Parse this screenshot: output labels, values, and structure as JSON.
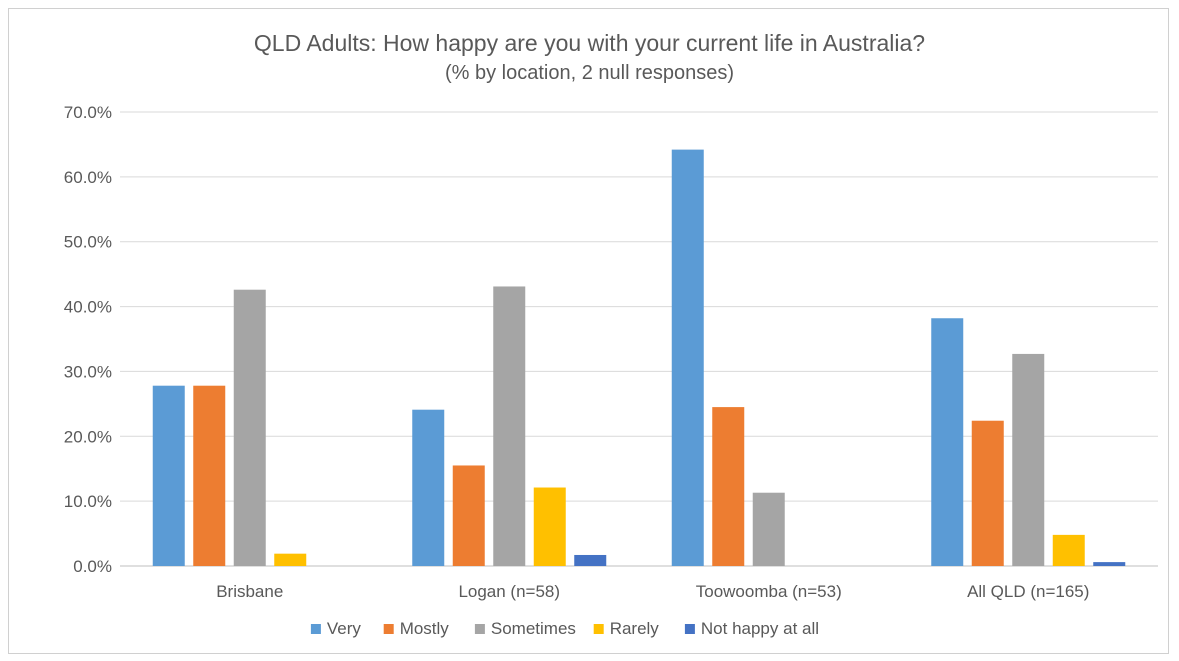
{
  "chart_data": {
    "type": "bar",
    "title": "QLD Adults: How happy are you with your current life in Australia?",
    "subtitle": "(% by location, 2 null responses)",
    "categories": [
      "Brisbane",
      "Logan (n=58)",
      "Toowoomba (n=53)",
      "All QLD (n=165)"
    ],
    "series": [
      {
        "name": "Very",
        "color": "#5B9BD5",
        "values": [
          27.8,
          24.1,
          64.2,
          38.2
        ]
      },
      {
        "name": "Mostly",
        "color": "#ED7D31",
        "values": [
          27.8,
          15.5,
          24.5,
          22.4
        ]
      },
      {
        "name": "Sometimes",
        "color": "#A5A5A5",
        "values": [
          42.6,
          43.1,
          11.3,
          32.7
        ]
      },
      {
        "name": "Rarely",
        "color": "#FFC000",
        "values": [
          1.9,
          12.1,
          0.0,
          4.8
        ]
      },
      {
        "name": "Not happy at all",
        "color": "#4472C4",
        "values": [
          0.0,
          1.7,
          0.0,
          0.6
        ]
      }
    ],
    "yticks": [
      "0.0%",
      "10.0%",
      "20.0%",
      "30.0%",
      "40.0%",
      "50.0%",
      "60.0%",
      "70.0%"
    ],
    "ylim": [
      0,
      70
    ],
    "grid": true,
    "legend_position": "bottom"
  }
}
